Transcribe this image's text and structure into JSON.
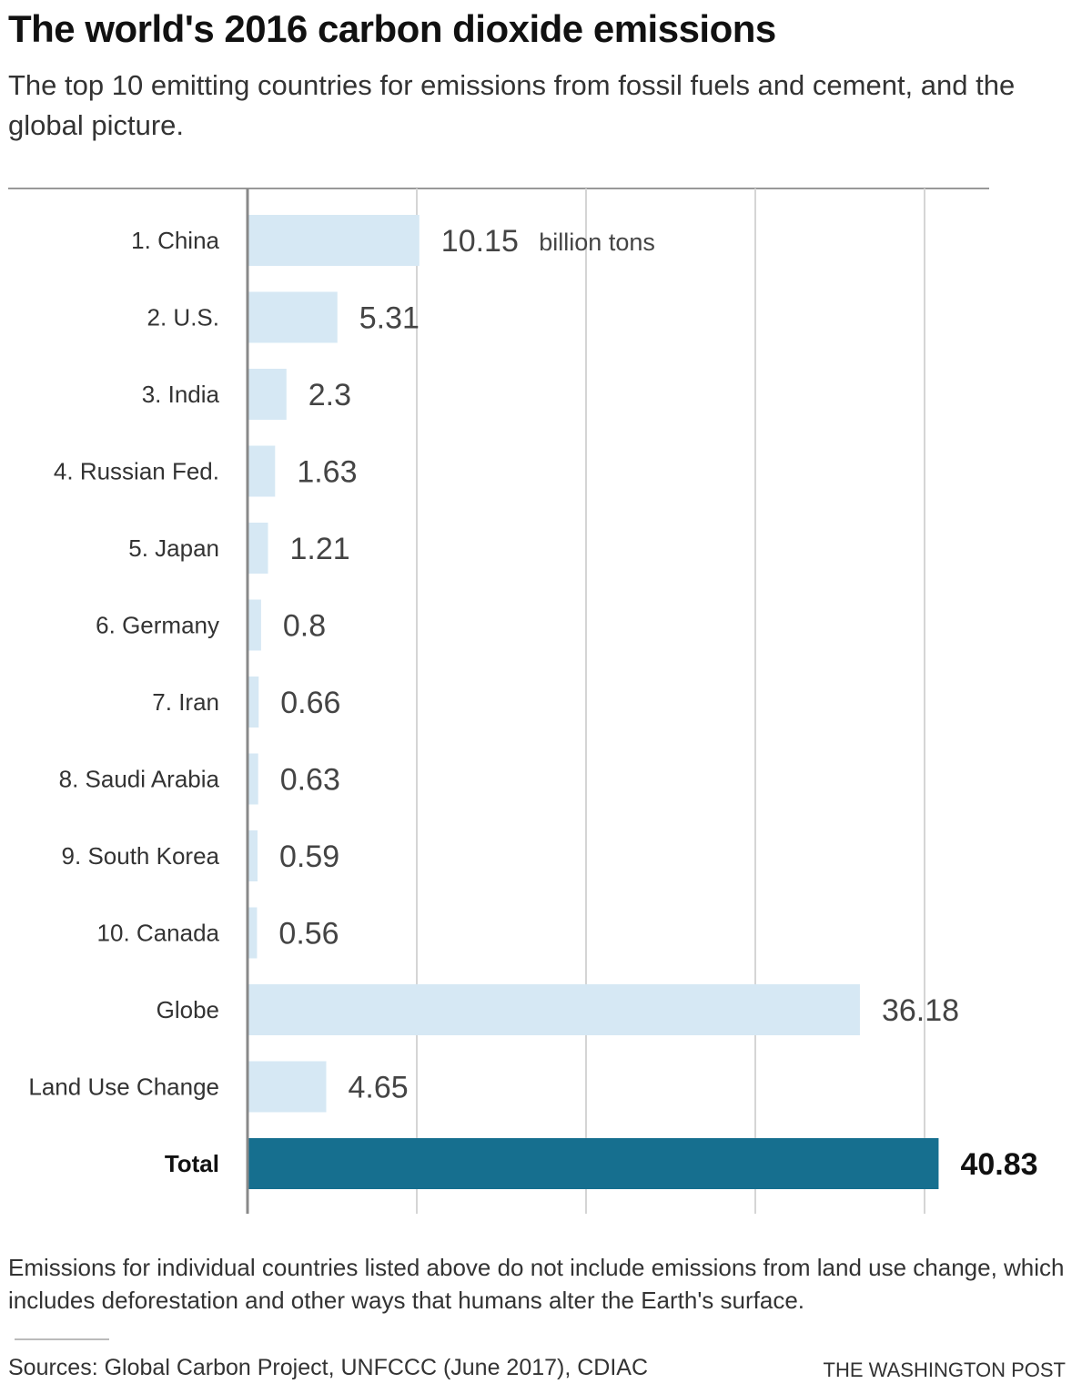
{
  "header": {
    "title": "The world's 2016 carbon dioxide emissions",
    "subtitle": "The top 10 emitting countries for emissions from fossil fuels and cement, and the global picture."
  },
  "colors": {
    "bar": "#d6e8f4",
    "total_bar": "#166f8f",
    "gridline": "#d5d5d5",
    "axis": "#888888"
  },
  "chart_data": {
    "type": "bar",
    "orientation": "horizontal",
    "categories": [
      "1. China",
      "2. U.S.",
      "3. India",
      "4. Russian Fed.",
      "5. Japan",
      "6. Germany",
      "7. Iran",
      "8. Saudi Arabia",
      "9. South Korea",
      "10. Canada",
      "Globe",
      "Land Use Change",
      "Total"
    ],
    "values": [
      10.15,
      5.31,
      2.3,
      1.63,
      1.21,
      0.8,
      0.66,
      0.63,
      0.59,
      0.56,
      36.18,
      4.65,
      40.83
    ],
    "value_labels": [
      "10.15",
      "5.31",
      "2.3",
      "1.63",
      "1.21",
      "0.8",
      "0.66",
      "0.63",
      "0.59",
      "0.56",
      "36.18",
      "4.65",
      "40.83"
    ],
    "unit_label": "billion tons",
    "highlight_category": "Total",
    "xlim": [
      0,
      44
    ],
    "gridlines": [
      0,
      10,
      20,
      30,
      40
    ],
    "grid": true
  },
  "footer": {
    "note": "Emissions for individual countries listed above do not include emissions from land use change, which includes deforestation and other ways that humans alter the Earth's surface.",
    "sources": "Sources: Global Carbon Project, UNFCCC (June 2017), CDIAC",
    "credit": "THE WASHINGTON POST"
  }
}
